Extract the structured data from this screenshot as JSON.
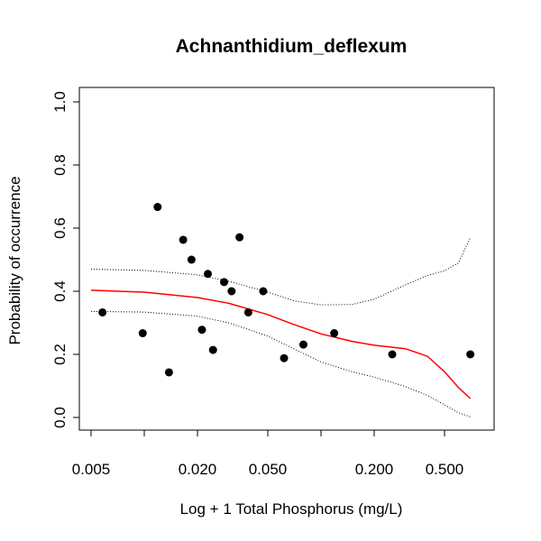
{
  "chart_data": {
    "type": "scatter",
    "title": "Achnanthidium_deflexum",
    "xlabel": "Log + 1 Total Phosphorus (mg/L)",
    "ylabel": "Probability of occurrence",
    "x_scale": "log",
    "xlim": [
      0.005,
      0.8
    ],
    "ylim": [
      0.0,
      1.0
    ],
    "x_ticks": [
      {
        "value": 0.005,
        "label": "0.005"
      },
      {
        "value": 0.01,
        "label": ""
      },
      {
        "value": 0.02,
        "label": "0.020"
      },
      {
        "value": 0.05,
        "label": "0.050"
      },
      {
        "value": 0.1,
        "label": ""
      },
      {
        "value": 0.2,
        "label": "0.200"
      },
      {
        "value": 0.5,
        "label": "0.500"
      }
    ],
    "y_ticks": [
      {
        "value": 0.0,
        "label": "0.0"
      },
      {
        "value": 0.2,
        "label": "0.2"
      },
      {
        "value": 0.4,
        "label": "0.4"
      },
      {
        "value": 0.6,
        "label": "0.6"
      },
      {
        "value": 0.8,
        "label": "0.8"
      },
      {
        "value": 1.0,
        "label": "1.0"
      }
    ],
    "points": [
      {
        "x": 0.0058,
        "y": 0.333
      },
      {
        "x": 0.0098,
        "y": 0.267
      },
      {
        "x": 0.0119,
        "y": 0.667
      },
      {
        "x": 0.0138,
        "y": 0.143
      },
      {
        "x": 0.0166,
        "y": 0.563
      },
      {
        "x": 0.0185,
        "y": 0.5
      },
      {
        "x": 0.0212,
        "y": 0.278
      },
      {
        "x": 0.0229,
        "y": 0.455
      },
      {
        "x": 0.0245,
        "y": 0.214
      },
      {
        "x": 0.0283,
        "y": 0.429
      },
      {
        "x": 0.0312,
        "y": 0.4
      },
      {
        "x": 0.0346,
        "y": 0.571
      },
      {
        "x": 0.0388,
        "y": 0.333
      },
      {
        "x": 0.0471,
        "y": 0.4
      },
      {
        "x": 0.0618,
        "y": 0.188
      },
      {
        "x": 0.0795,
        "y": 0.231
      },
      {
        "x": 0.1188,
        "y": 0.267
      },
      {
        "x": 0.2531,
        "y": 0.2
      },
      {
        "x": 0.7,
        "y": 0.2
      }
    ],
    "fit": {
      "color": "#ff0000",
      "x": [
        0.005,
        0.01,
        0.02,
        0.03,
        0.05,
        0.07,
        0.1,
        0.15,
        0.2,
        0.3,
        0.4,
        0.5,
        0.6,
        0.7
      ],
      "y": [
        0.403,
        0.397,
        0.38,
        0.362,
        0.326,
        0.295,
        0.265,
        0.241,
        0.229,
        0.218,
        0.194,
        0.145,
        0.095,
        0.06
      ]
    },
    "upper_bound": {
      "style": "dotted",
      "x": [
        0.005,
        0.01,
        0.02,
        0.03,
        0.05,
        0.07,
        0.1,
        0.15,
        0.2,
        0.3,
        0.4,
        0.5,
        0.6,
        0.7
      ],
      "y": [
        0.47,
        0.466,
        0.452,
        0.432,
        0.397,
        0.37,
        0.357,
        0.358,
        0.375,
        0.42,
        0.45,
        0.465,
        0.49,
        0.57
      ]
    },
    "lower_bound": {
      "style": "dotted",
      "x": [
        0.005,
        0.01,
        0.02,
        0.03,
        0.05,
        0.07,
        0.1,
        0.15,
        0.2,
        0.3,
        0.4,
        0.5,
        0.6,
        0.7
      ],
      "y": [
        0.336,
        0.334,
        0.321,
        0.3,
        0.258,
        0.218,
        0.176,
        0.145,
        0.128,
        0.098,
        0.07,
        0.04,
        0.015,
        0.002
      ]
    }
  }
}
